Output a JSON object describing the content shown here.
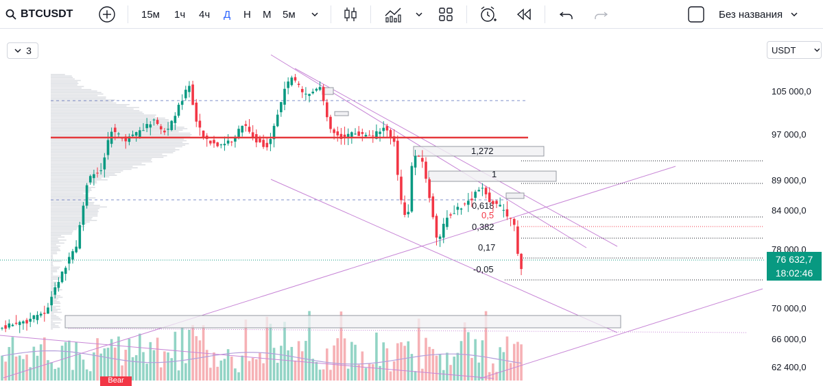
{
  "toolbar": {
    "symbol": "BTCUSDT",
    "add_icon": "plus-circle-icon",
    "intervals": [
      {
        "label": "15м",
        "active": false
      },
      {
        "label": "1ч",
        "active": false
      },
      {
        "label": "4ч",
        "active": false
      },
      {
        "label": "Д",
        "active": true
      },
      {
        "label": "Н",
        "active": false
      },
      {
        "label": "М",
        "active": false
      },
      {
        "label": "5м",
        "active": false
      }
    ],
    "layout_name": "Без названия"
  },
  "chart": {
    "legend_count": "3",
    "currency": "USDT",
    "price_axis": [
      "105 000,0",
      "97 000,0",
      "89 000,0",
      "84 000,0",
      "78 000,0",
      "70 000,0",
      "66 000,0",
      "62 400,0"
    ],
    "current_price": "76 632,7",
    "countdown": "18:02:46",
    "fib_levels": [
      "1,272",
      "1",
      "0,618",
      "0,5",
      "0,382",
      "0,17",
      "-0,05"
    ],
    "bear_label": "Bear",
    "colors": {
      "up": "#089981",
      "down": "#f23645",
      "accent": "#2962ff",
      "drawing": "#c785d6"
    }
  }
}
